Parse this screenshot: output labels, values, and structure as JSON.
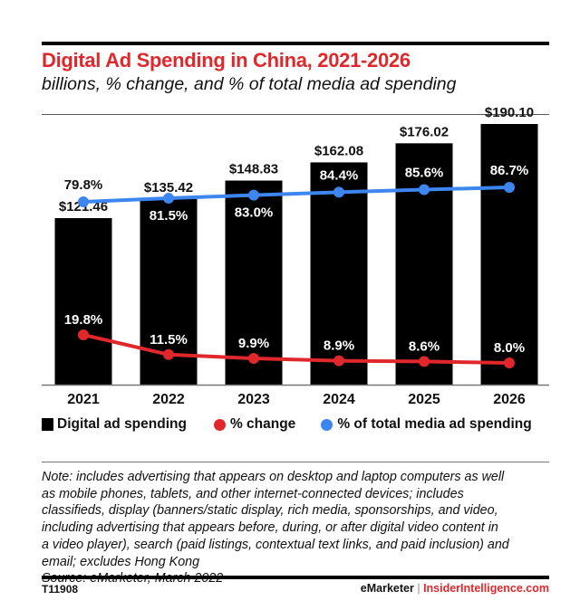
{
  "chart_data": {
    "type": "bar",
    "title": "Digital Ad Spending in China, 2021-2026",
    "subtitle": "billions, % change, and % of total media ad spending",
    "categories": [
      "2021",
      "2022",
      "2023",
      "2024",
      "2025",
      "2026"
    ],
    "series": [
      {
        "name": "Digital ad spending",
        "type": "bar",
        "color": "#000000",
        "values": [
          121.46,
          135.42,
          148.83,
          162.08,
          176.02,
          190.1
        ],
        "labels": [
          "$121.46",
          "$135.42",
          "$148.83",
          "$162.08",
          "$176.02",
          "$190.10"
        ]
      },
      {
        "name": "% change",
        "type": "line",
        "color": "#e0282c",
        "values": [
          19.8,
          11.5,
          9.9,
          8.9,
          8.6,
          8.0
        ],
        "labels": [
          "19.8%",
          "11.5%",
          "9.9%",
          "8.9%",
          "8.6%",
          "8.0%"
        ]
      },
      {
        "name": "% of total media ad spending",
        "type": "line",
        "color": "#3d86f0",
        "values": [
          79.8,
          81.5,
          83.0,
          84.4,
          85.6,
          86.7
        ],
        "labels": [
          "79.8%",
          "81.5%",
          "83.0%",
          "84.4%",
          "85.6%",
          "86.7%"
        ]
      }
    ],
    "grid": false,
    "legend": "bottom"
  },
  "legend": {
    "bar": "Digital ad spending",
    "change": "% change",
    "share": "% of total media ad spending"
  },
  "note": [
    "Note: includes advertising that appears on desktop and laptop computers as well",
    "as mobile phones, tablets, and other internet-connected devices; includes",
    "classifieds, display (banners/static display, rich media, sponsorships, and video,",
    "including advertising that appears before, during, or after digital video content in",
    "a video player), search (paid listings, contextual text links, and paid inclusion) and",
    "email; excludes Hong Kong"
  ],
  "source": "Source: eMarketer, March 2022",
  "footer": {
    "code": "T11908",
    "brand1": "eMarketer",
    "sep": "|",
    "brand2": "InsiderIntelligence.com"
  }
}
